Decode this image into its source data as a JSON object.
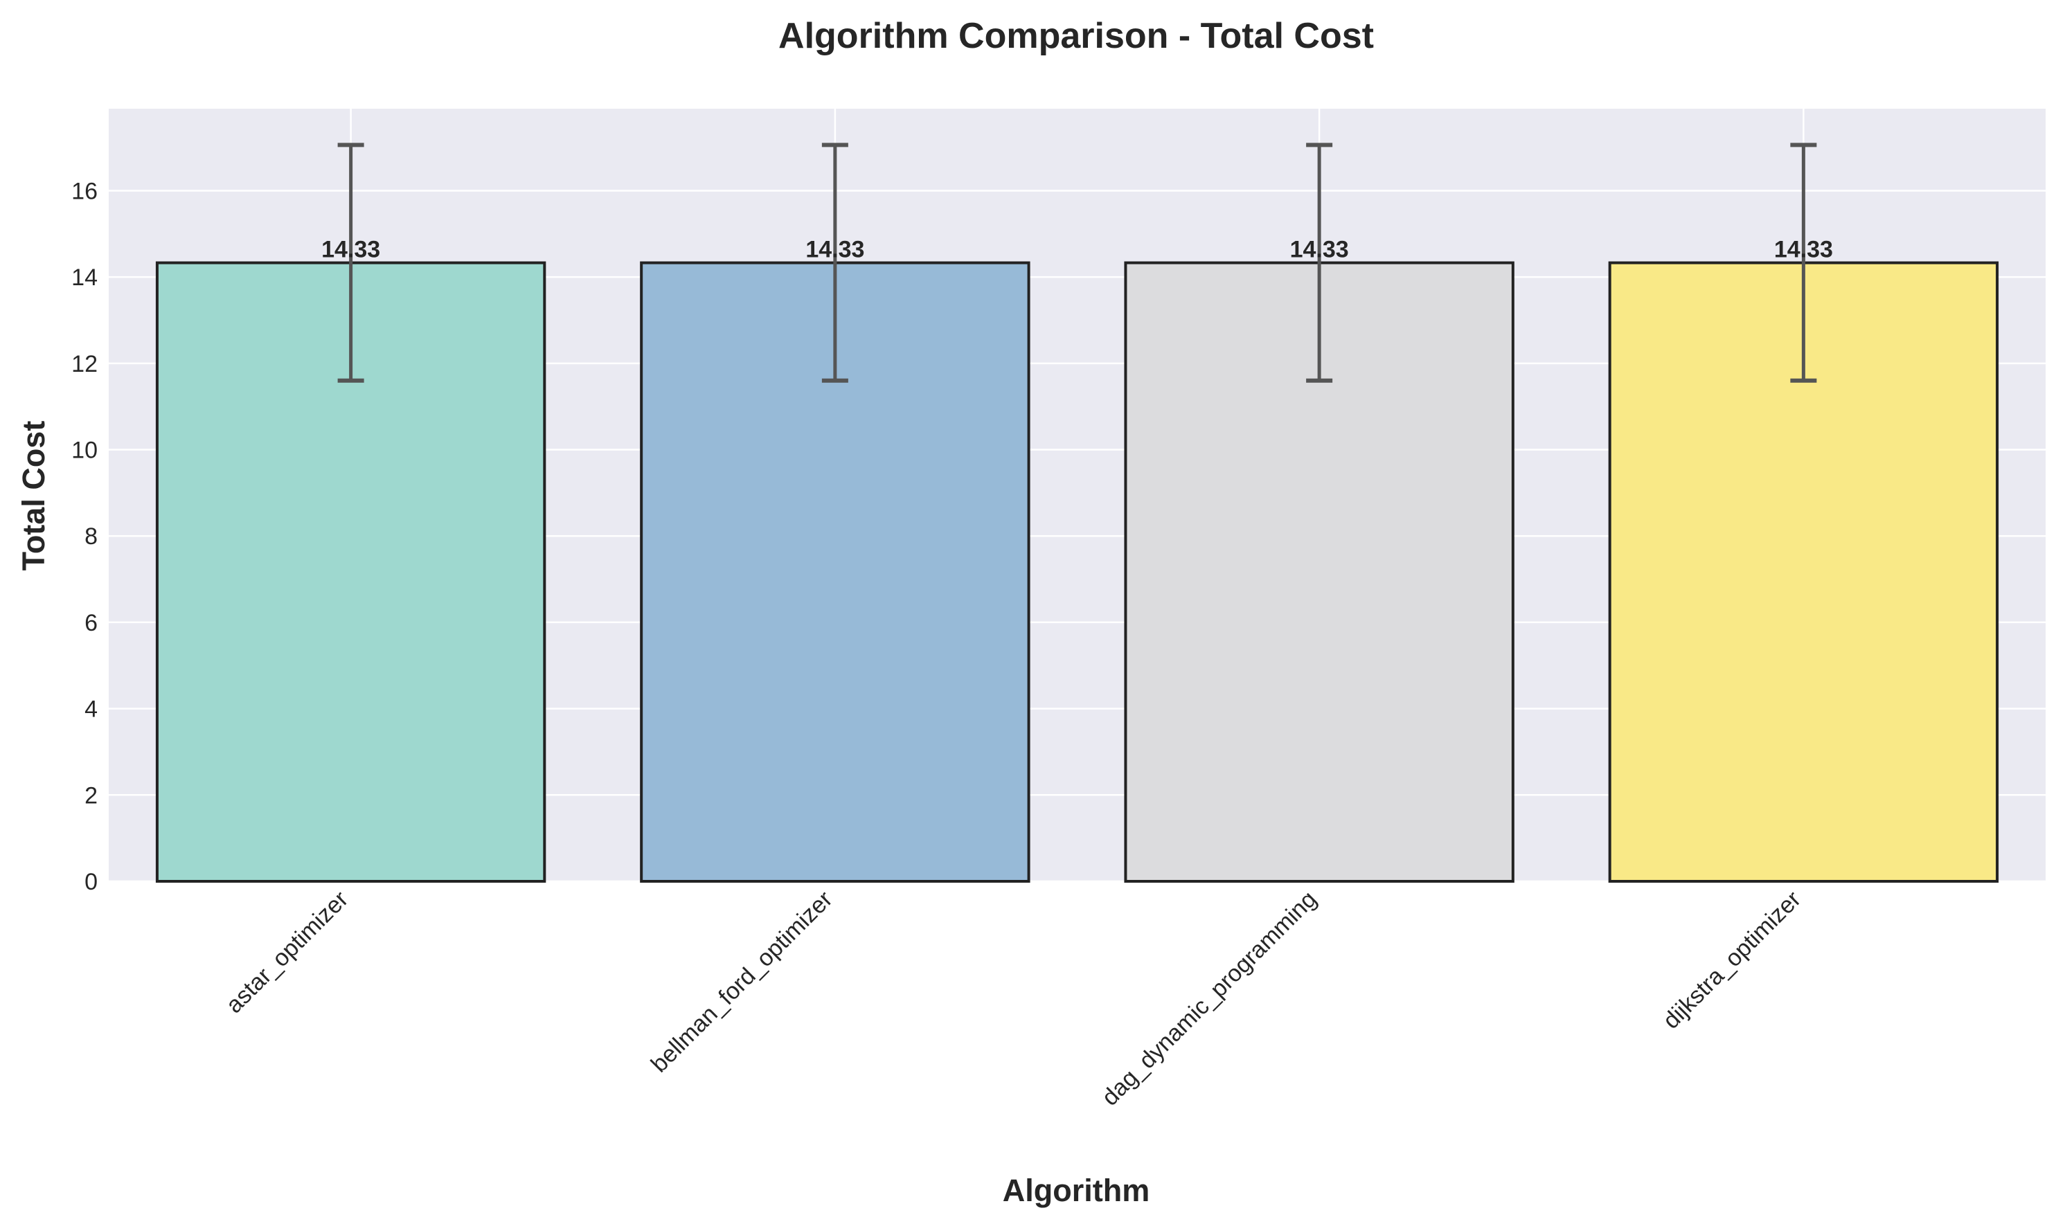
{
  "chart_data": {
    "type": "bar",
    "title": "Algorithm Comparison - Total Cost",
    "xlabel": "Algorithm",
    "ylabel": "Total Cost",
    "categories": [
      "astar_optimizer",
      "bellman_ford_optimizer",
      "dag_dynamic_programming",
      "dijkstra_optimizer"
    ],
    "values": [
      14.33,
      14.33,
      14.33,
      14.33
    ],
    "value_labels": [
      "14.33",
      "14.33",
      "14.33",
      "14.33"
    ],
    "error_low": [
      11.6,
      11.6,
      11.6,
      11.6
    ],
    "error_high": [
      17.06,
      17.06,
      17.06,
      17.06
    ],
    "ylim": [
      0,
      17.9
    ],
    "yticks": [
      "0",
      "2",
      "4",
      "6",
      "8",
      "10",
      "12",
      "14",
      "16"
    ],
    "grid": true,
    "legend": "none",
    "colors": [
      "#9ED8CF",
      "#97BAD7",
      "#DCDCDE",
      "#F9E987"
    ],
    "plot_background": "#EAEAF2",
    "bar_edge_color": "#222222",
    "errorbar_color": "#555555"
  }
}
